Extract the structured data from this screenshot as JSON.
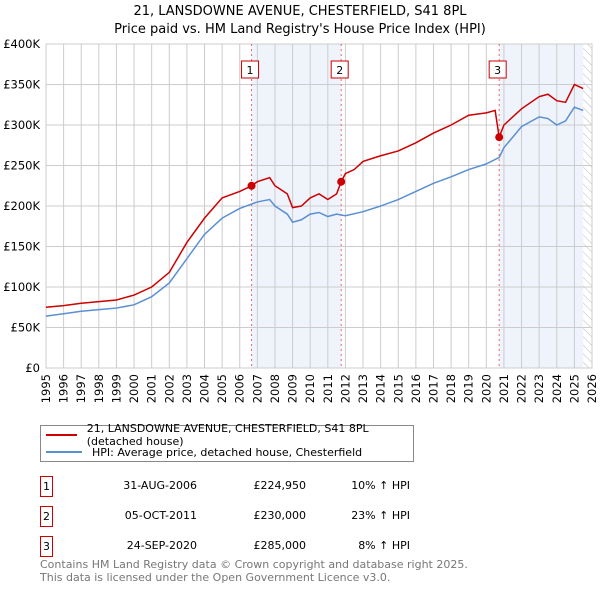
{
  "chart_data": {
    "type": "line",
    "title": "21, LANSDOWNE AVENUE, CHESTERFIELD, S41 8PL",
    "subtitle": "Price paid vs. HM Land Registry's House Price Index (HPI)",
    "xlim": [
      1995,
      2026
    ],
    "ylim": [
      0,
      400000
    ],
    "x_ticks": [
      "1995",
      "1996",
      "1997",
      "1998",
      "1999",
      "2000",
      "2001",
      "2002",
      "2003",
      "2004",
      "2005",
      "2006",
      "2007",
      "2008",
      "2009",
      "2010",
      "2011",
      "2012",
      "2013",
      "2014",
      "2015",
      "2016",
      "2017",
      "2018",
      "2019",
      "2020",
      "2021",
      "2022",
      "2023",
      "2024",
      "2025",
      "2026"
    ],
    "y_ticks": [
      {
        "v": 0,
        "label": "£0"
      },
      {
        "v": 50000,
        "label": "£50K"
      },
      {
        "v": 100000,
        "label": "£100K"
      },
      {
        "v": 150000,
        "label": "£150K"
      },
      {
        "v": 200000,
        "label": "£200K"
      },
      {
        "v": 250000,
        "label": "£250K"
      },
      {
        "v": 300000,
        "label": "£300K"
      },
      {
        "v": 350000,
        "label": "£350K"
      },
      {
        "v": 400000,
        "label": "£400K"
      }
    ],
    "grid": true,
    "series": [
      {
        "name": "21, LANSDOWNE AVENUE, CHESTERFIELD, S41 8PL (detached house)",
        "color": "#cc0000",
        "x": [
          1995,
          1996,
          1997,
          1998,
          1999,
          2000,
          2001,
          2002,
          2003,
          2004,
          2005,
          2006,
          2006.67,
          2007,
          2007.7,
          2008,
          2008.7,
          2009,
          2009.5,
          2010,
          2010.5,
          2011,
          2011.5,
          2011.76,
          2012,
          2012.5,
          2013,
          2014,
          2015,
          2016,
          2017,
          2018,
          2019,
          2020,
          2020.5,
          2020.73,
          2021,
          2022,
          2023,
          2023.5,
          2024,
          2024.5,
          2025,
          2025.5
        ],
        "values": [
          75000,
          77000,
          80000,
          82000,
          84000,
          90000,
          100000,
          118000,
          155000,
          185000,
          210000,
          218000,
          224950,
          230000,
          235000,
          225000,
          215000,
          198000,
          200000,
          210000,
          215000,
          208000,
          215000,
          230000,
          240000,
          245000,
          255000,
          262000,
          268000,
          278000,
          290000,
          300000,
          312000,
          315000,
          318000,
          285000,
          300000,
          320000,
          335000,
          338000,
          330000,
          328000,
          350000,
          345000
        ]
      },
      {
        "name": "HPI: Average price, detached house, Chesterfield",
        "color": "#5b8fd4",
        "x": [
          1995,
          1996,
          1997,
          1998,
          1999,
          2000,
          2001,
          2002,
          2003,
          2004,
          2005,
          2006,
          2007,
          2007.7,
          2008,
          2008.7,
          2009,
          2009.5,
          2010,
          2010.5,
          2011,
          2011.5,
          2012,
          2013,
          2014,
          2015,
          2016,
          2017,
          2018,
          2019,
          2020,
          2020.73,
          2021,
          2022,
          2023,
          2023.5,
          2024,
          2024.5,
          2025,
          2025.5
        ],
        "values": [
          64000,
          67000,
          70000,
          72000,
          74000,
          78000,
          88000,
          105000,
          135000,
          165000,
          185000,
          197000,
          205000,
          208000,
          200000,
          190000,
          180000,
          183000,
          190000,
          192000,
          187000,
          190000,
          188000,
          193000,
          200000,
          208000,
          218000,
          228000,
          236000,
          245000,
          252000,
          260000,
          272000,
          298000,
          310000,
          308000,
          300000,
          305000,
          322000,
          318000
        ]
      }
    ],
    "sales": [
      {
        "n": "1",
        "x": 2006.67,
        "v": 224950
      },
      {
        "n": "2",
        "x": 2011.76,
        "v": 230000
      },
      {
        "n": "3",
        "x": 2020.73,
        "v": 285000
      }
    ],
    "shaded": [
      [
        2006.67,
        2011.76
      ],
      [
        2020.73,
        2025.5
      ]
    ],
    "hatched_from": 2025.5
  },
  "legend": {
    "property": "21, LANSDOWNE AVENUE, CHESTERFIELD, S41 8PL (detached house)",
    "hpi": "HPI: Average price, detached house, Chesterfield"
  },
  "transactions": [
    {
      "n": "1",
      "date": "31-AUG-2006",
      "price": "£224,950",
      "hpi": "10% ↑ HPI"
    },
    {
      "n": "2",
      "date": "05-OCT-2011",
      "price": "£230,000",
      "hpi": "23% ↑ HPI"
    },
    {
      "n": "3",
      "date": "24-SEP-2020",
      "price": "£285,000",
      "hpi": "8% ↑ HPI"
    }
  ],
  "footer": [
    "Contains HM Land Registry data © Crown copyright and database right 2025.",
    "This data is licensed under the Open Government Licence v3.0."
  ]
}
